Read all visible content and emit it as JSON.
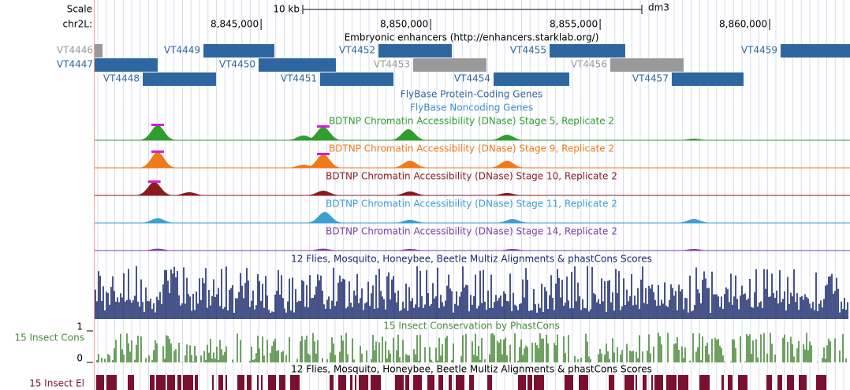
{
  "header": {
    "scale": "Scale",
    "chrom": "chr2L:",
    "scalebar": {
      "label": "10 kb",
      "length": 10000
    },
    "assembly": "dm3"
  },
  "axis": {
    "xlim": [
      8840090,
      8862370
    ],
    "ticks": [
      {
        "value": 8845000,
        "label": "8,845,000"
      },
      {
        "value": 8850000,
        "label": "8,850,000"
      },
      {
        "value": 8855000,
        "label": "8,855,000"
      },
      {
        "value": 8860000,
        "label": "8,860,000"
      }
    ]
  },
  "enhancers": {
    "title": "Embryonic enhancers (http://enhancers.starklab.org/)",
    "items": [
      {
        "label": "VT4446",
        "start": 8840090,
        "end": 8840323,
        "color": "#999999"
      },
      {
        "label": "VT4447",
        "start": 8840090,
        "end": 8841950,
        "color": "#2e67a0"
      },
      {
        "label": "VT4448",
        "start": 8841509,
        "end": 8843671,
        "color": "#2e67a0"
      },
      {
        "label": "VT4449",
        "start": 8843299,
        "end": 8845392,
        "color": "#2e67a0"
      },
      {
        "label": "VT4450",
        "start": 8844927,
        "end": 8847206,
        "color": "#2e67a0"
      },
      {
        "label": "VT4451",
        "start": 8846741,
        "end": 8848904,
        "color": "#2e67a0"
      },
      {
        "label": "VT4452",
        "start": 8848462,
        "end": 8850625,
        "color": "#2e67a0"
      },
      {
        "label": "VT4453",
        "start": 8849485,
        "end": 8851648,
        "color": "#999999"
      },
      {
        "label": "VT4454",
        "start": 8851858,
        "end": 8854090,
        "color": "#2e67a0"
      },
      {
        "label": "VT4455",
        "start": 8853509,
        "end": 8855741,
        "color": "#2e67a0"
      },
      {
        "label": "VT4456",
        "start": 8855299,
        "end": 8857462,
        "color": "#999999"
      },
      {
        "label": "VT4457",
        "start": 8857113,
        "end": 8859230,
        "color": "#2e67a0"
      },
      {
        "label": "VT4459",
        "start": 8860323,
        "end": 8862370,
        "color": "#2e67a0"
      }
    ]
  },
  "gene_tracks": [
    "FlyBase Protein-Coding Genes",
    "FlyBase Noncoding Genes"
  ],
  "dnase_tracks": [
    {
      "title": "BDTNP Chromatin Accessibility (DNase) Stage 5, Replicate 2",
      "color": "#2f9e2f",
      "peaks": [
        [
          8841950,
          0.95
        ],
        [
          8846253,
          0.3
        ],
        [
          8846834,
          0.85
        ],
        [
          8849346,
          0.7
        ],
        [
          8852253,
          0.35
        ],
        [
          8857764,
          0.1
        ]
      ]
    },
    {
      "title": "BDTNP Chromatin Accessibility (DNase) Stage 9, Replicate 2",
      "color": "#f07a1a",
      "peaks": [
        [
          8841950,
          1.0
        ],
        [
          8846253,
          0.2
        ],
        [
          8846834,
          0.85
        ],
        [
          8849392,
          0.45
        ],
        [
          8852253,
          0.45
        ]
      ]
    },
    {
      "title": "BDTNP Chromatin Accessibility (DNase) Stage 10, Replicate 2",
      "color": "#8b1a1f",
      "peaks": [
        [
          8841850,
          0.85
        ],
        [
          8842881,
          0.2
        ],
        [
          8846834,
          0.3
        ],
        [
          8849392,
          0.25
        ],
        [
          8852253,
          0.15
        ]
      ]
    },
    {
      "title": "BDTNP Chromatin Accessibility (DNase) Stage 11, Replicate 2",
      "color": "#3aa0d0",
      "peaks": [
        [
          8841950,
          0.3
        ],
        [
          8846880,
          0.7
        ],
        [
          8849392,
          0.2
        ],
        [
          8852416,
          0.25
        ],
        [
          8857764,
          0.25
        ]
      ]
    },
    {
      "title": "BDTNP Chromatin Accessibility (DNase) Stage 14, Replicate 2",
      "color": "#7b3fa0",
      "peaks": [
        [
          8841950,
          0.12
        ],
        [
          8846834,
          0.12
        ],
        [
          8849392,
          0.1
        ],
        [
          8852416,
          0.1
        ],
        [
          8857764,
          0.1
        ]
      ]
    }
  ],
  "multiz": {
    "title": "12 Flies, Mosquito, Honeybee, Beetle Multiz Alignments & phastCons Scores"
  },
  "conservation": {
    "title": "15 Insect Conservation by PhastCons",
    "label": "15 Insect Cons",
    "ylim": [
      0,
      1
    ],
    "yticks": [
      0,
      1
    ]
  },
  "elements": {
    "title": "12 Flies, Mosquito, Honeybee, Beetle Multiz Alignments & phastCons Scores",
    "label": "15 Insect El"
  }
}
